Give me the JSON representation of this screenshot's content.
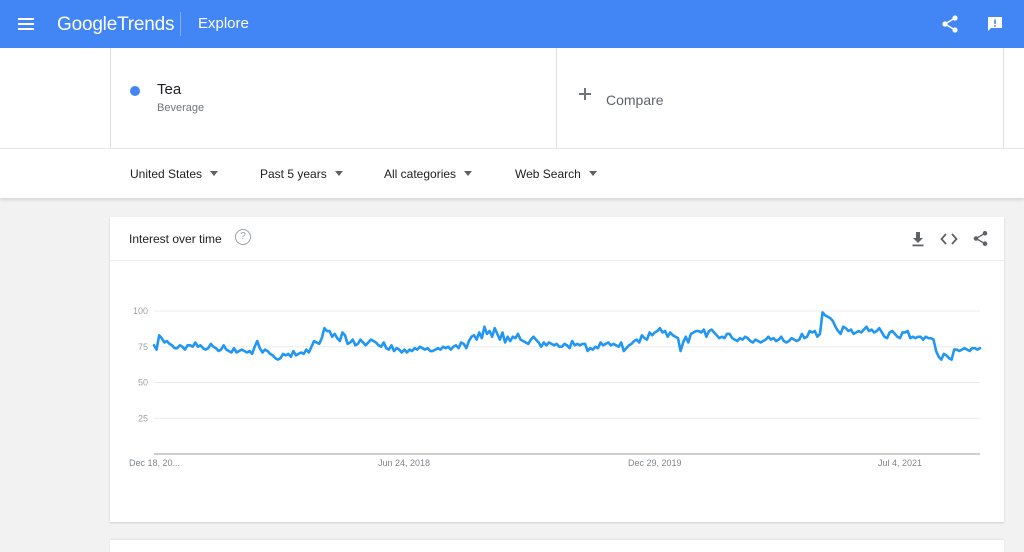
{
  "header": {
    "logo_google": "Google",
    "logo_trends": "Trends",
    "section": "Explore",
    "icons": [
      "menu-icon",
      "share-icon",
      "feedback-icon"
    ]
  },
  "terms": {
    "term": {
      "name": "Tea",
      "subtitle": "Beverage",
      "color": "#4285f4"
    },
    "compare_label": "Compare"
  },
  "filters": {
    "region": "United States",
    "time_range": "Past 5 years",
    "category": "All categories",
    "search_type": "Web Search"
  },
  "card": {
    "title": "Interest over time",
    "help_glyph": "?",
    "icons": [
      "help-icon",
      "download-icon",
      "embed-icon",
      "share-icon"
    ]
  },
  "chart_data": {
    "type": "line",
    "title": "Interest over time",
    "xlabel": "",
    "ylabel": "",
    "ylim": [
      0,
      100
    ],
    "yticks": [
      "25",
      "50",
      "75",
      "100"
    ],
    "xticks": [
      "Dec 18, 20...",
      "Jun 24, 2018",
      "Dec 29, 2019",
      "Jul 4, 2021"
    ],
    "grid": true,
    "color": "#2196f3",
    "series": [
      {
        "values": [
          76,
          73,
          83,
          81,
          78,
          79,
          77,
          76,
          74,
          74,
          76,
          75,
          73,
          76,
          76,
          75,
          78,
          75,
          76,
          74,
          73,
          74,
          77,
          75,
          74,
          72,
          73,
          76,
          73,
          72,
          71,
          74,
          71,
          72,
          73,
          72,
          71,
          72,
          70,
          75,
          79,
          74,
          71,
          73,
          72,
          70,
          69,
          67,
          66,
          67,
          70,
          69,
          70,
          68,
          72,
          69,
          70,
          71,
          70,
          73,
          71,
          75,
          79,
          78,
          77,
          81,
          88,
          86,
          86,
          82,
          84,
          81,
          79,
          85,
          83,
          77,
          78,
          80,
          76,
          77,
          80,
          78,
          76,
          78,
          80,
          79,
          78,
          76,
          75,
          78,
          74,
          73,
          76,
          72,
          74,
          73,
          71,
          73,
          71,
          73,
          72,
          74,
          73,
          75,
          74,
          73,
          74,
          72,
          72,
          73,
          74,
          73,
          75,
          74,
          75,
          73,
          75,
          76,
          74,
          78,
          77,
          74,
          79,
          82,
          83,
          80,
          85,
          81,
          89,
          84,
          86,
          82,
          88,
          84,
          80,
          85,
          78,
          82,
          79,
          82,
          81,
          84,
          80,
          79,
          78,
          77,
          80,
          82,
          80,
          78,
          75,
          78,
          76,
          78,
          77,
          76,
          77,
          75,
          75,
          77,
          76,
          74,
          79,
          76,
          77,
          76,
          77,
          77,
          72,
          74,
          73,
          75,
          74,
          78,
          76,
          77,
          78,
          76,
          77,
          76,
          75,
          78,
          72,
          74,
          76,
          77,
          79,
          80,
          78,
          83,
          81,
          80,
          85,
          83,
          85,
          86,
          88,
          85,
          86,
          82,
          85,
          83,
          82,
          81,
          72,
          78,
          82,
          78,
          84,
          85,
          86,
          86,
          85,
          87,
          82,
          86,
          87,
          85,
          83,
          81,
          82,
          81,
          84,
          84,
          81,
          80,
          79,
          81,
          80,
          82,
          81,
          79,
          78,
          80,
          79,
          78,
          79,
          80,
          82,
          80,
          81,
          79,
          80,
          82,
          79,
          78,
          79,
          81,
          80,
          79,
          80,
          84,
          81,
          82,
          86,
          85,
          86,
          82,
          84,
          99,
          97,
          96,
          95,
          93,
          89,
          86,
          84,
          89,
          88,
          86,
          87,
          84,
          85,
          86,
          85,
          87,
          89,
          86,
          87,
          85,
          86,
          88,
          85,
          82,
          81,
          85,
          86,
          84,
          82,
          81,
          85,
          85,
          86,
          81,
          82,
          81,
          82,
          82,
          80,
          82,
          81,
          81,
          80,
          72,
          68,
          66,
          70,
          69,
          67,
          66,
          73,
          73,
          72,
          73,
          74,
          73,
          72,
          74,
          74,
          73,
          74
        ]
      }
    ]
  }
}
